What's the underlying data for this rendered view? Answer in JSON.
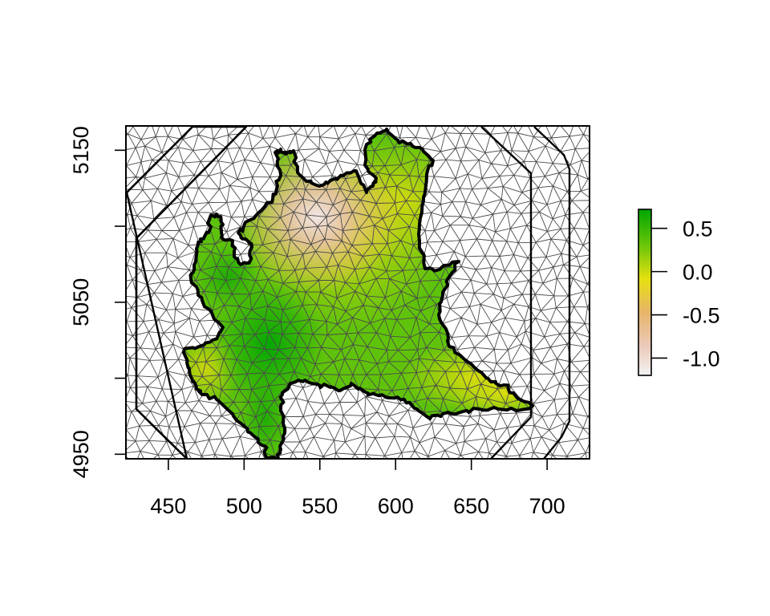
{
  "map": {
    "x_axis": {
      "range": [
        422,
        728
      ],
      "ticks": [
        "450",
        "500",
        "550",
        "600",
        "650",
        "700"
      ],
      "tick_values": [
        450,
        500,
        550,
        600,
        650,
        700
      ]
    },
    "y_axis": {
      "range": [
        4947,
        5166
      ],
      "ticks": [
        "4950",
        "5050",
        "5150"
      ],
      "tick_values": [
        4950,
        5050,
        5150
      ],
      "minor_tick_values": [
        5000,
        5100
      ]
    },
    "legend": {
      "position": "right",
      "ticks": [
        "0.5",
        "0.0",
        "-0.5",
        "-1.0"
      ],
      "tick_values": [
        0.5,
        0.0,
        -0.5,
        -1.0
      ],
      "range": [
        -1.2,
        0.72
      ],
      "colors": [
        "#F2F2F2",
        "#E8B882",
        "#E6E010",
        "#4FC00A",
        "#00A600"
      ]
    },
    "field_colors": {
      "high": "#00A600",
      "mid_high": "#4FC00A",
      "mid": "#D4D80E",
      "low": "#E8B882",
      "lowest": "#F0DCDC"
    }
  }
}
